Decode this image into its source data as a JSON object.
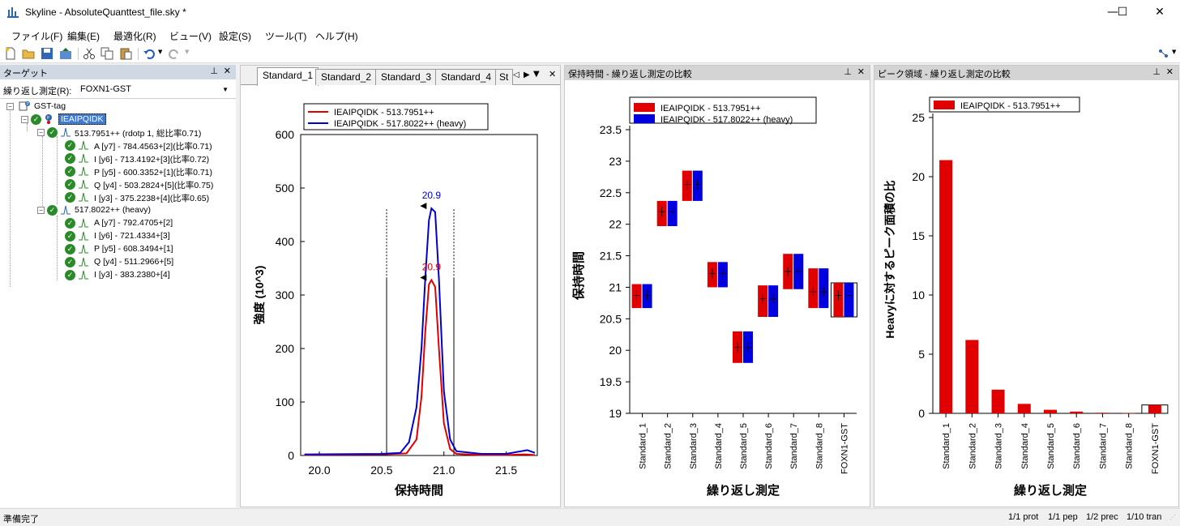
{
  "window": {
    "title": "Skyline - AbsoluteQuanttest_file.sky *",
    "min": "—",
    "max": "☐",
    "close": "✕"
  },
  "menu": [
    "ファイル(F)",
    "編集(E)",
    "最適化(R)",
    "ビュー(V)",
    "設定(S)",
    "ツール(T)",
    "ヘルプ(H)"
  ],
  "targets_pane": {
    "header": "ターゲット",
    "replicate_label": "繰り返し測定(R):",
    "replicate_value": "FOXN1-GST",
    "tree": {
      "protein": "GST-tag",
      "peptide": "IEAIPQIDK",
      "precursor_light": "513.7951++ (rdotp 1, 総比率0.71)",
      "transitions_light": [
        "A [y7] - 784.4563+[2](比率0.71)",
        "I [y6] - 713.4192+[3](比率0.72)",
        "P [y5] - 600.3352+[1](比率0.71)",
        "Q [y4] - 503.2824+[5](比率0.75)",
        "I [y3] - 375.2238+[4](比率0.65)"
      ],
      "precursor_heavy": "517.8022++ (heavy)",
      "transitions_heavy": [
        "A [y7] - 792.4705+[2]",
        "I [y6] - 721.4334+[3]",
        "P [y5] - 608.3494+[1]",
        "Q [y4] - 511.2966+[5]",
        "I [y3] - 383.2380+[4]"
      ]
    }
  },
  "chrom_pane": {
    "tabs": [
      "Standard_1",
      "Standard_2",
      "Standard_3",
      "Standard_4",
      "St"
    ],
    "legend": [
      "IEAIPQIDK - 513.7951++",
      "IEAIPQIDK - 517.8022++ (heavy)"
    ],
    "peak_label_light": "20.9",
    "peak_label_heavy": "20.9"
  },
  "rt_pane": {
    "header": "保持時間 - 繰り返し測定の比較",
    "legend": [
      "IEAIPQIDK - 513.7951++",
      "IEAIPQIDK - 517.8022++ (heavy)"
    ]
  },
  "area_pane": {
    "header": "ピーク領域 - 繰り返し測定の比較",
    "legend": [
      "IEAIPQIDK - 513.7951++"
    ]
  },
  "chart_data": [
    {
      "type": "line",
      "xlabel": "保持時間",
      "ylabel": "強度 (10^3)",
      "xlim": [
        19.85,
        21.75
      ],
      "ylim": [
        0,
        600
      ],
      "xticks": [
        "20.0",
        "20.5",
        "21.0",
        "21.5"
      ],
      "yticks": [
        "0",
        "100",
        "200",
        "300",
        "400",
        "500",
        "600"
      ],
      "series": [
        {
          "name": "IEAIPQIDK - 513.7951++",
          "color": "#e00000",
          "x": [
            19.88,
            20.5,
            20.7,
            20.78,
            20.82,
            20.85,
            20.88,
            20.9,
            20.93,
            20.96,
            21.0,
            21.05,
            21.1,
            21.3,
            21.5,
            21.65,
            21.73
          ],
          "y": [
            1,
            2,
            4,
            30,
            110,
            230,
            320,
            328,
            315,
            200,
            60,
            12,
            3,
            1,
            1,
            2,
            1
          ]
        },
        {
          "name": "IEAIPQIDK - 517.8022++ (heavy)",
          "color": "#0000d0",
          "x": [
            19.88,
            20.5,
            20.65,
            20.72,
            20.78,
            20.82,
            20.85,
            20.88,
            20.9,
            20.93,
            20.96,
            21.0,
            21.05,
            21.1,
            21.3,
            21.5,
            21.62,
            21.67,
            21.73
          ],
          "y": [
            2,
            3,
            5,
            25,
            90,
            200,
            330,
            440,
            462,
            455,
            330,
            120,
            30,
            8,
            3,
            3,
            8,
            10,
            5
          ]
        }
      ],
      "annotations": [
        "20.9",
        "20.9"
      ]
    },
    {
      "type": "bar",
      "xlabel": "繰り返し測定",
      "ylabel": "保持時間",
      "ylim": [
        19,
        23.5
      ],
      "yticks": [
        "19",
        "19.5",
        "20",
        "20.5",
        "21",
        "21.5",
        "22",
        "22.5",
        "23",
        "23.5"
      ],
      "categories": [
        "Standard_1",
        "Standard_2",
        "Standard_3",
        "Standard_4",
        "Standard_5",
        "Standard_6",
        "Standard_7",
        "Standard_8",
        "FOXN1-GST"
      ],
      "series": [
        {
          "name": "IEAIPQIDK - 513.7951++",
          "color": "#e00000",
          "low": [
            20.67,
            21.97,
            22.37,
            21.0,
            19.8,
            20.53,
            20.97,
            20.67,
            20.53
          ],
          "high": [
            21.05,
            22.37,
            22.85,
            21.4,
            20.3,
            21.03,
            21.53,
            21.3,
            21.07
          ],
          "mid": [
            20.87,
            22.2,
            22.63,
            21.22,
            20.05,
            20.82,
            21.25,
            20.93,
            20.87
          ]
        },
        {
          "name": "IEAIPQIDK - 517.8022++ (heavy)",
          "color": "#0000e0",
          "low": [
            20.67,
            21.97,
            22.37,
            21.0,
            19.8,
            20.53,
            20.97,
            20.67,
            20.53
          ],
          "high": [
            21.05,
            22.37,
            22.85,
            21.4,
            20.3,
            21.03,
            21.53,
            21.3,
            21.07
          ],
          "mid": [
            20.87,
            22.2,
            22.63,
            21.22,
            20.05,
            20.82,
            21.25,
            20.93,
            20.87
          ]
        }
      ]
    },
    {
      "type": "bar",
      "xlabel": "繰り返し測定",
      "ylabel": "Heavyに対するピーク面積の比",
      "ylim": [
        0,
        25
      ],
      "yticks": [
        "0",
        "5",
        "10",
        "15",
        "20",
        "25"
      ],
      "categories": [
        "Standard_1",
        "Standard_2",
        "Standard_3",
        "Standard_4",
        "Standard_5",
        "Standard_6",
        "Standard_7",
        "Standard_8",
        "FOXN1-GST"
      ],
      "series": [
        {
          "name": "IEAIPQIDK - 513.7951++",
          "color": "#e00000",
          "values": [
            21.4,
            6.2,
            2.0,
            0.8,
            0.3,
            0.15,
            0.05,
            0.02,
            0.71
          ]
        }
      ]
    }
  ],
  "status": {
    "ready": "準備完了",
    "counts": [
      "1/1 prot",
      "1/1 pep",
      "1/2 prec",
      "1/10 tran"
    ]
  }
}
